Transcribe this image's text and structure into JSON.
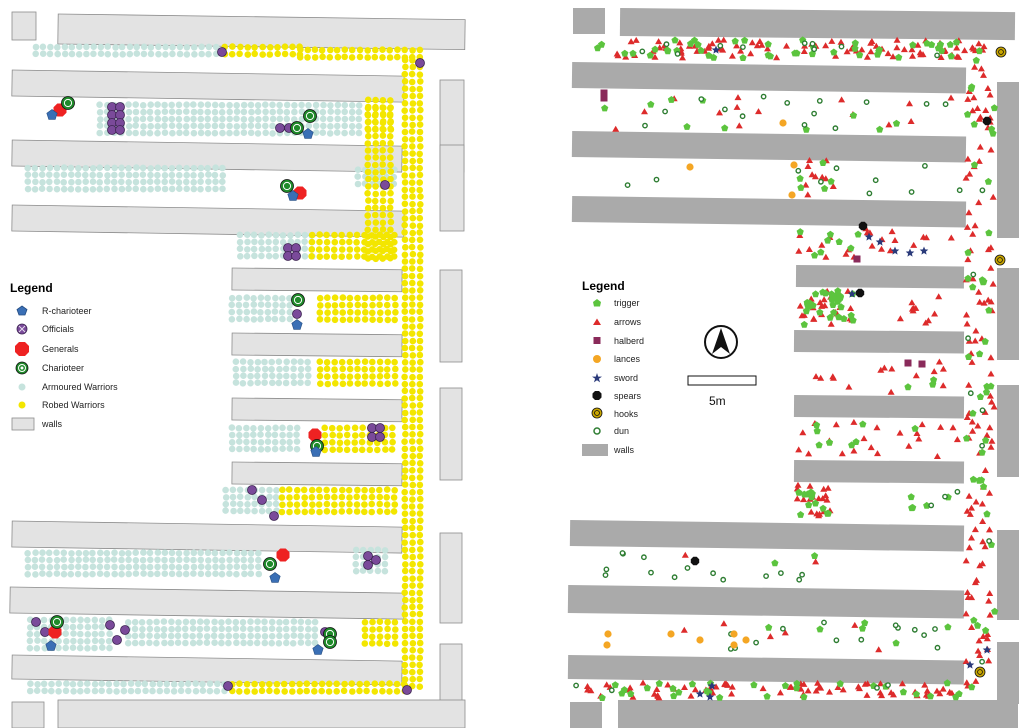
{
  "colors": {
    "wall_left": "#e3e3e3",
    "wall_right": "#aaaaaa",
    "wall_stroke": "#8c8c8c",
    "armoured": "#c6e3dd",
    "robed": "#f3e600",
    "officials": "#7a4a9a",
    "generals": "#ee2222",
    "charioteer": "#1f8a2a",
    "r_charioteer": "#3a6fb5",
    "trigger": "#5cc43e",
    "arrows": "#dd2b2b",
    "halberd": "#8a2a5a",
    "lances": "#f4a624",
    "sword": "#2a3a7a",
    "spears": "#111111",
    "hooks": "#c9a600",
    "dun": "#2e7d32"
  },
  "left_map": {
    "legend": {
      "title": "Legend",
      "items": [
        {
          "label": "R-charioteer",
          "icon": "pentagon-icon"
        },
        {
          "label": "Officials",
          "icon": "crossed-circle-icon"
        },
        {
          "label": "Generals",
          "icon": "octagon-icon"
        },
        {
          "label": "Charioteer",
          "icon": "ring-icon"
        },
        {
          "label": "Armoured Warriors",
          "icon": "dot-icon"
        },
        {
          "label": "Robed Warriors",
          "icon": "dot-icon"
        },
        {
          "label": "walls",
          "icon": "wall-icon"
        }
      ]
    }
  },
  "right_map": {
    "legend": {
      "title": "Legend",
      "items": [
        {
          "label": "trigger",
          "icon": "pentagon-icon"
        },
        {
          "label": "arrows",
          "icon": "triangle-icon"
        },
        {
          "label": "halberd",
          "icon": "square-icon"
        },
        {
          "label": "lances",
          "icon": "circle-icon"
        },
        {
          "label": "sword",
          "icon": "star-icon"
        },
        {
          "label": "spears",
          "icon": "octagon-icon"
        },
        {
          "label": "hooks",
          "icon": "target-icon"
        },
        {
          "label": "dun",
          "icon": "ring-icon"
        },
        {
          "label": "walls",
          "icon": "wall-icon"
        }
      ]
    },
    "north_arrow": {
      "icon": "north-arrow-icon"
    },
    "scale_bar": {
      "label": "5m"
    }
  }
}
